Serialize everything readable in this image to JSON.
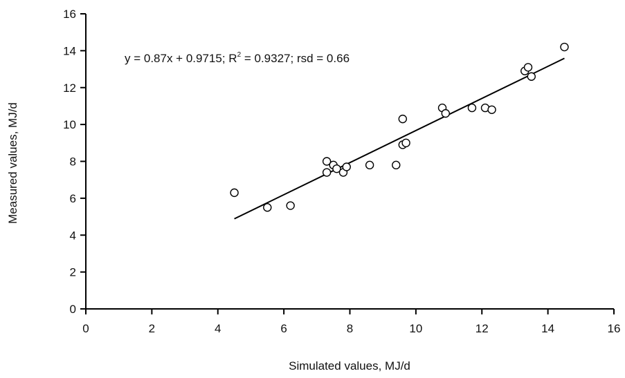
{
  "chart_data": {
    "type": "scatter",
    "title": "",
    "xlabel": "Simulated values, MJ/d",
    "ylabel": "Measured values, MJ/d",
    "xlim": [
      0,
      16
    ],
    "ylim": [
      0,
      16
    ],
    "x_ticks": [
      0,
      2,
      4,
      6,
      8,
      10,
      12,
      14,
      16
    ],
    "y_ticks": [
      0,
      2,
      4,
      6,
      8,
      10,
      12,
      14,
      16
    ],
    "tick_labels_x": [
      "0",
      "2",
      "4",
      "6",
      "8",
      "10",
      "12",
      "14",
      "16"
    ],
    "tick_labels_y": [
      "0",
      "2",
      "4",
      "6",
      "8",
      "10",
      "12",
      "14",
      "16"
    ],
    "grid": false,
    "legend": "none",
    "annotation": {
      "prefix": "y = 0.87x + 0.9715; R",
      "sup": "2",
      "suffix": " = 0.9327; rsd = 0.66"
    },
    "trendline": {
      "slope": 0.87,
      "intercept": 0.9715,
      "x_range": [
        4.5,
        14.5
      ]
    },
    "series": [
      {
        "points": [
          {
            "x": 4.5,
            "y": 6.3
          },
          {
            "x": 5.5,
            "y": 5.5
          },
          {
            "x": 6.2,
            "y": 5.6
          },
          {
            "x": 7.3,
            "y": 8.0
          },
          {
            "x": 7.3,
            "y": 7.4
          },
          {
            "x": 7.5,
            "y": 7.8
          },
          {
            "x": 7.6,
            "y": 7.6
          },
          {
            "x": 7.8,
            "y": 7.4
          },
          {
            "x": 7.9,
            "y": 7.7
          },
          {
            "x": 8.6,
            "y": 7.8
          },
          {
            "x": 9.4,
            "y": 7.8
          },
          {
            "x": 9.6,
            "y": 8.9
          },
          {
            "x": 9.7,
            "y": 9.0
          },
          {
            "x": 9.6,
            "y": 10.3
          },
          {
            "x": 10.8,
            "y": 10.9
          },
          {
            "x": 10.9,
            "y": 10.6
          },
          {
            "x": 11.7,
            "y": 10.9
          },
          {
            "x": 12.1,
            "y": 10.9
          },
          {
            "x": 12.3,
            "y": 10.8
          },
          {
            "x": 13.3,
            "y": 12.9
          },
          {
            "x": 13.4,
            "y": 13.1
          },
          {
            "x": 13.5,
            "y": 12.6
          },
          {
            "x": 14.5,
            "y": 14.2
          }
        ]
      }
    ]
  }
}
